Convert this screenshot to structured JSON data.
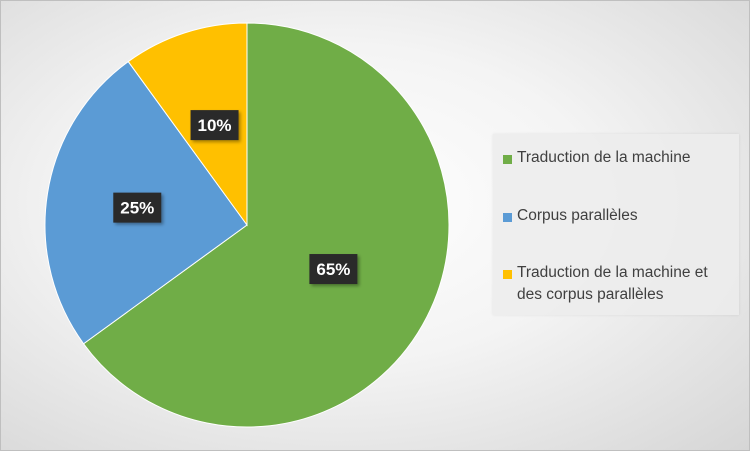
{
  "chart_data": {
    "type": "pie",
    "title": "",
    "slices": [
      {
        "name": "Traduction de la machine",
        "value": 65,
        "label": "65%",
        "color": "#70ad47"
      },
      {
        "name": "Corpus parallèles",
        "value": 25,
        "label": "25%",
        "color": "#5b9bd5"
      },
      {
        "name": "Traduction de la machine et des corpus parallèles",
        "value": 10,
        "label": "10%",
        "color": "#ffc000"
      }
    ],
    "start_angle_deg": 0,
    "direction": "clockwise",
    "legend_position": "right"
  },
  "legend": {
    "items": [
      {
        "label": "Traduction de la machine",
        "color": "#70ad47"
      },
      {
        "label": "Corpus parallèles",
        "color": "#5b9bd5"
      },
      {
        "label": "Traduction de la machine et des corpus parallèles",
        "color": "#ffc000"
      }
    ]
  }
}
